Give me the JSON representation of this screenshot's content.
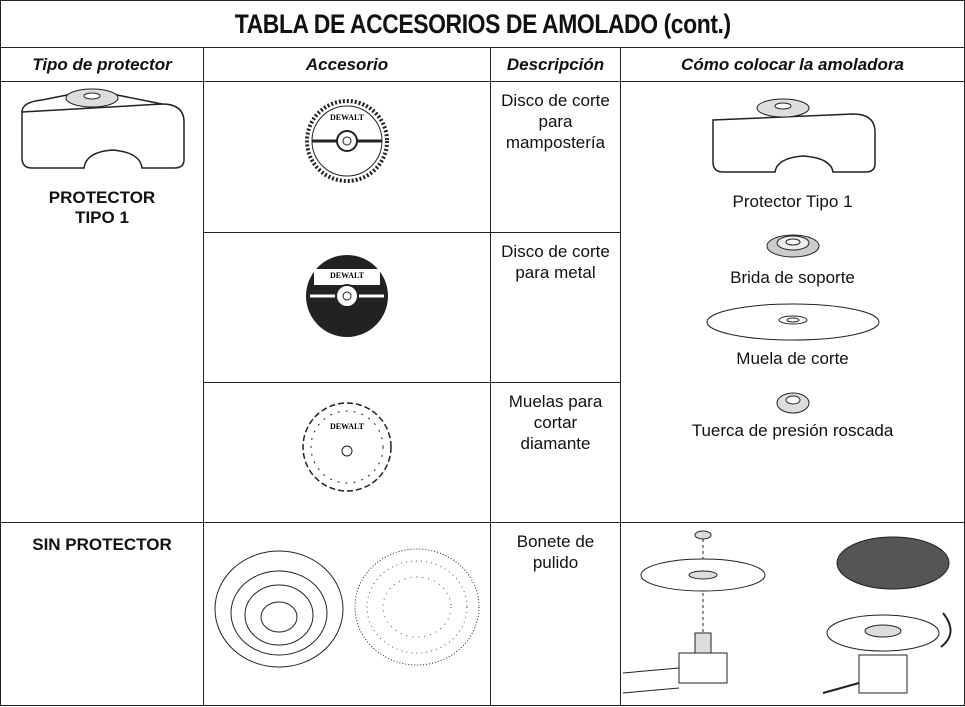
{
  "title": "TABLA DE ACCESORIOS DE AMOLADO (cont.)",
  "headers": [
    "Tipo de protector",
    "Accesorio",
    "Descripción",
    "Cómo colocar la amoladora"
  ],
  "brand": "DEWALT",
  "groups": [
    {
      "protector": "PROTECTOR TIPO 1",
      "rows": [
        {
          "description": "Disco de corte para mampostería"
        },
        {
          "description": "Disco de corte para metal"
        },
        {
          "description": "Muelas para cortar diamante"
        }
      ],
      "assembly": [
        "Protector Tipo 1",
        "Brida de soporte",
        "Muela de corte",
        "Tuerca de presión roscada"
      ]
    },
    {
      "protector": "SIN PROTECTOR",
      "rows": [
        {
          "description": "Bonete de pulido"
        }
      ]
    }
  ]
}
